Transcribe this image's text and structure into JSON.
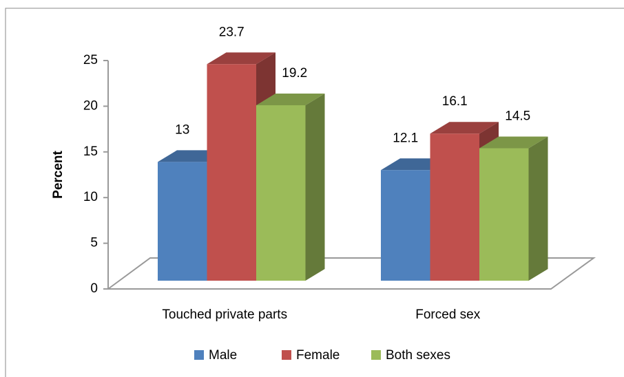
{
  "chart_data": {
    "type": "bar3d",
    "y_label": "Percent",
    "categories": [
      "Touched private parts",
      "Forced sex"
    ],
    "series": [
      {
        "name": "Male",
        "color": "#4f81bd",
        "values": [
          13,
          12.1
        ]
      },
      {
        "name": "Female",
        "color": "#c0504d",
        "values": [
          23.7,
          16.1
        ]
      },
      {
        "name": "Both sexes",
        "color": "#9bbb59",
        "values": [
          19.2,
          14.5
        ]
      }
    ],
    "ylim": [
      0,
      25
    ],
    "yticks": [
      0,
      5,
      10,
      15,
      20,
      25
    ],
    "legend": "bottom"
  }
}
